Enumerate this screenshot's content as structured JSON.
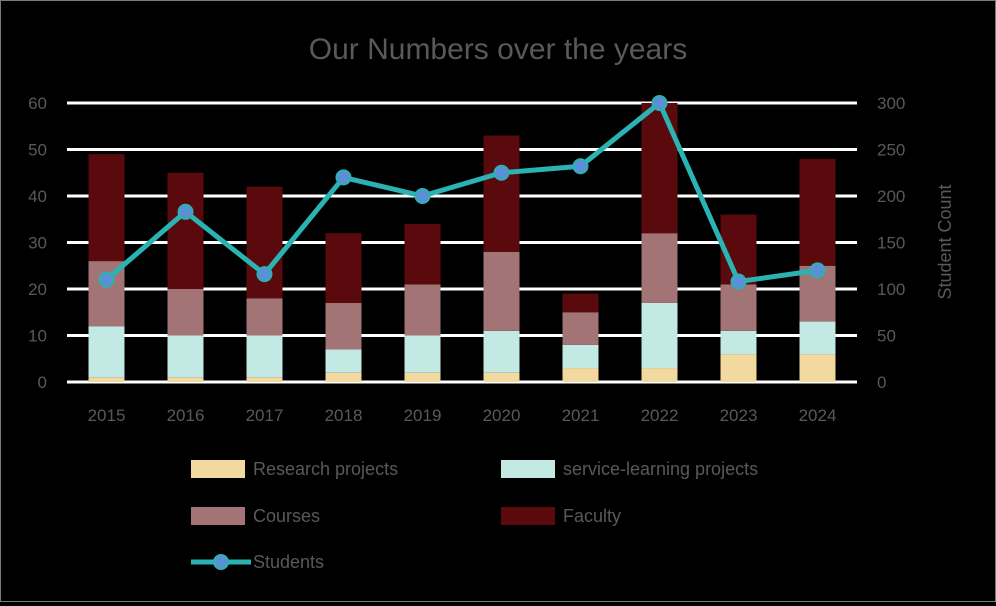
{
  "chart_data": {
    "type": "bar",
    "stacked": true,
    "title": "Our Numbers over the years",
    "categories": [
      "2015",
      "2016",
      "2017",
      "2018",
      "2019",
      "2020",
      "2021",
      "2022",
      "2023",
      "2024"
    ],
    "series": [
      {
        "name": "Research projects",
        "kind": "bar",
        "color": "#f2d9a0",
        "values": [
          1,
          1,
          1,
          2,
          2,
          2,
          3,
          3,
          6,
          6
        ]
      },
      {
        "name": "service-learning projects",
        "kind": "bar",
        "color": "#c3e9e4",
        "values": [
          11,
          9,
          9,
          5,
          8,
          9,
          5,
          14,
          5,
          7
        ]
      },
      {
        "name": "Courses",
        "kind": "bar",
        "color": "#a27476",
        "values": [
          14,
          10,
          8,
          10,
          11,
          17,
          7,
          15,
          10,
          12
        ]
      },
      {
        "name": "Faculty",
        "kind": "bar",
        "color": "#5a0a0c",
        "values": [
          23,
          25,
          24,
          15,
          13,
          25,
          4,
          28,
          15,
          23
        ]
      },
      {
        "name": "Students",
        "kind": "line",
        "axis": "right",
        "color": "#2bb2b2",
        "marker_color": "#5b8fd6",
        "values": [
          110,
          183,
          116,
          220,
          200,
          225,
          232,
          300,
          108,
          120
        ]
      }
    ],
    "y_left": {
      "ylim": [
        0,
        60
      ],
      "ticks": [
        "0",
        "10",
        "20",
        "30",
        "40",
        "50",
        "60"
      ]
    },
    "y_right": {
      "ylabel": "Student Count",
      "ylim": [
        0,
        300
      ],
      "ticks": [
        "0",
        "50",
        "100",
        "150",
        "200",
        "250",
        "300"
      ]
    },
    "grid": true,
    "legend_position": "bottom"
  }
}
